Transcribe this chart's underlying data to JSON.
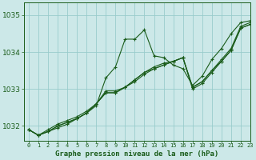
{
  "bg_color": "#cce8e8",
  "grid_color": "#99cccc",
  "line_color": "#1a5c1a",
  "marker_color": "#1a5c1a",
  "xlabel": "Graphe pression niveau de la mer (hPa)",
  "xlim": [
    -0.5,
    23
  ],
  "ylim": [
    1031.6,
    1035.35
  ],
  "yticks": [
    1032,
    1033,
    1034,
    1035
  ],
  "xticks": [
    0,
    1,
    2,
    3,
    4,
    5,
    6,
    7,
    8,
    9,
    10,
    11,
    12,
    13,
    14,
    15,
    16,
    17,
    18,
    19,
    20,
    21,
    22,
    23
  ],
  "series": [
    [
      1031.9,
      1031.75,
      1031.85,
      1031.95,
      1032.05,
      1032.2,
      1032.35,
      1032.55,
      1033.3,
      1033.6,
      1034.35,
      1034.35,
      1034.6,
      1033.9,
      1033.85,
      1033.65,
      1033.55,
      1033.1,
      1033.35,
      1033.8,
      1034.1,
      1034.5,
      1034.8,
      1034.85
    ],
    [
      1031.9,
      1031.75,
      1031.85,
      1032.0,
      1032.1,
      1032.2,
      1032.35,
      1032.6,
      1032.9,
      1032.9,
      1033.05,
      1033.25,
      1033.45,
      1033.6,
      1033.7,
      1033.75,
      1033.85,
      1033.05,
      1033.2,
      1033.5,
      1033.75,
      1034.05,
      1034.65,
      1034.75
    ],
    [
      1031.9,
      1031.75,
      1031.85,
      1032.0,
      1032.1,
      1032.2,
      1032.35,
      1032.6,
      1032.9,
      1032.9,
      1033.05,
      1033.2,
      1033.4,
      1033.55,
      1033.65,
      1033.75,
      1033.85,
      1033.0,
      1033.15,
      1033.45,
      1033.75,
      1034.05,
      1034.65,
      1034.75
    ],
    [
      1031.9,
      1031.75,
      1031.9,
      1032.05,
      1032.15,
      1032.25,
      1032.4,
      1032.6,
      1032.95,
      1032.95,
      1033.05,
      1033.25,
      1033.45,
      1033.55,
      1033.65,
      1033.75,
      1033.85,
      1033.05,
      1033.2,
      1033.5,
      1033.8,
      1034.1,
      1034.7,
      1034.8
    ]
  ]
}
